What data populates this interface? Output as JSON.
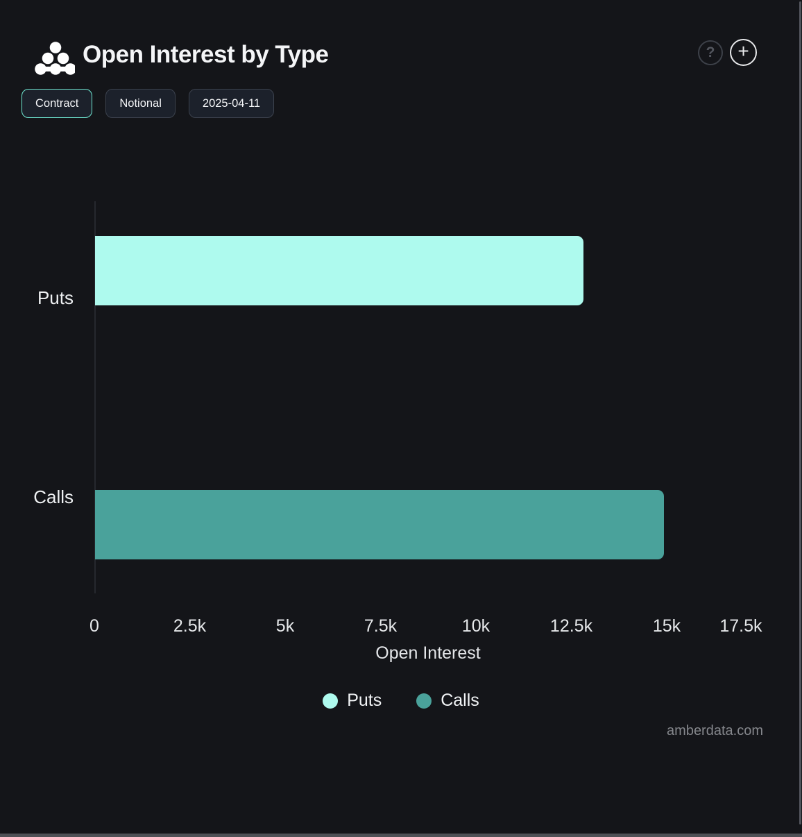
{
  "header": {
    "title": "Open Interest by Type",
    "help_label": "?",
    "add_label": "+"
  },
  "toolbar": {
    "buttons": [
      {
        "label": "Contract",
        "active": true
      },
      {
        "label": "Notional",
        "active": false
      },
      {
        "label": "2025-04-11",
        "active": false
      }
    ]
  },
  "chart_data": {
    "type": "bar",
    "orientation": "horizontal",
    "title": "Open Interest by Type",
    "categories": [
      "Puts",
      "Calls"
    ],
    "values": [
      12800,
      14900
    ],
    "colors": [
      "#aefaee",
      "#4aa29b"
    ],
    "xlabel": "Open Interest",
    "ylabel": "",
    "xlim": [
      0,
      17500
    ],
    "xticks": [
      0,
      2500,
      5000,
      7500,
      10000,
      12500,
      15000,
      17500
    ],
    "xtick_labels": [
      "0",
      "2.5k",
      "5k",
      "7.5k",
      "10k",
      "12.5k",
      "15k",
      "17.5k"
    ],
    "grid": false,
    "legend_position": "bottom",
    "legend": [
      {
        "label": "Puts",
        "color": "#aefaee"
      },
      {
        "label": "Calls",
        "color": "#4aa29b"
      }
    ]
  },
  "watermark": "amberdata.com",
  "colors": {
    "background": "#141519",
    "accent": "#70e9d3",
    "puts_bar": "#aefaee",
    "calls_bar": "#4aa29b",
    "axis_line": "#26282e"
  }
}
